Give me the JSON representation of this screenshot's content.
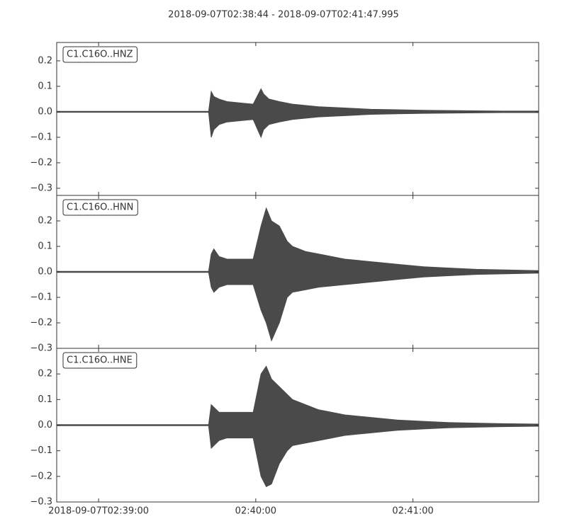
{
  "chart_data": [
    {
      "type": "area",
      "title": "2018-09-07T02:38:44  -  2018-09-07T02:41:47.995",
      "label": "C1.C16O..HNZ",
      "xlim": [
        0,
        183.995
      ],
      "ylim": [
        -0.328,
        0.272
      ],
      "yticks": [
        {
          "value": -0.3,
          "label": "−0.3"
        },
        {
          "value": -0.2,
          "label": "−0.2"
        },
        {
          "value": -0.1,
          "label": "−0.1"
        },
        {
          "value": 0,
          "label": "0.0"
        },
        0.1,
        0.2
      ],
      "x": [
        0,
        58,
        59,
        60,
        62,
        65,
        70,
        75,
        78,
        79,
        81,
        85,
        90,
        100,
        110,
        120,
        130,
        140,
        150,
        160,
        170,
        184
      ],
      "series": [
        {
          "color": "#4a4a4a",
          "values": [
            0.002,
            0.002,
            0.08,
            0.06,
            0.05,
            0.04,
            0.035,
            0.03,
            0.09,
            0.07,
            0.05,
            0.04,
            0.03,
            0.02,
            0.015,
            0.01,
            0.008,
            0.006,
            0.005,
            0.004,
            0.003,
            0.003
          ]
        },
        {
          "color": "#4a4a4a",
          "values": [
            -0.002,
            -0.002,
            -0.1,
            -0.07,
            -0.05,
            -0.04,
            -0.035,
            -0.03,
            -0.1,
            -0.07,
            -0.05,
            -0.04,
            -0.03,
            -0.02,
            -0.015,
            -0.01,
            -0.008,
            -0.006,
            -0.005,
            -0.004,
            -0.003,
            -0.003
          ]
        }
      ]
    },
    {
      "type": "area",
      "label": "C1.C16O..HNN",
      "xlim": [
        0,
        183.995
      ],
      "ylim": [
        -0.3,
        0.3
      ],
      "yticks": [
        {
          "value": -0.3,
          "label": "−0.3"
        },
        {
          "value": -0.2,
          "label": "−0.2"
        },
        {
          "value": -0.1,
          "label": "−0.1"
        },
        {
          "value": 0,
          "label": "0.0"
        },
        0.1,
        0.2
      ],
      "x": [
        0,
        58,
        59,
        60,
        62,
        65,
        70,
        75,
        78,
        80,
        82,
        85,
        88,
        90,
        95,
        100,
        110,
        120,
        130,
        140,
        150,
        160,
        170,
        184
      ],
      "series": [
        {
          "color": "#4a4a4a",
          "values": [
            0.002,
            0.002,
            0.07,
            0.09,
            0.06,
            0.05,
            0.05,
            0.05,
            0.18,
            0.25,
            0.2,
            0.18,
            0.12,
            0.1,
            0.08,
            0.07,
            0.05,
            0.04,
            0.03,
            0.02,
            0.015,
            0.01,
            0.008,
            0.005
          ]
        },
        {
          "color": "#4a4a4a",
          "values": [
            -0.002,
            -0.002,
            -0.06,
            -0.08,
            -0.06,
            -0.05,
            -0.05,
            -0.05,
            -0.15,
            -0.2,
            -0.27,
            -0.2,
            -0.1,
            -0.08,
            -0.07,
            -0.06,
            -0.05,
            -0.04,
            -0.03,
            -0.02,
            -0.015,
            -0.01,
            -0.008,
            -0.005
          ]
        }
      ]
    },
    {
      "type": "area",
      "label": "C1.C16O..HNE",
      "xlim": [
        0,
        183.995
      ],
      "ylim": [
        -0.3,
        0.3
      ],
      "yticks": [
        {
          "value": -0.3,
          "label": "−0.3"
        },
        {
          "value": -0.2,
          "label": "−0.2"
        },
        {
          "value": -0.1,
          "label": "−0.1"
        },
        {
          "value": 0,
          "label": "0.0"
        },
        0.1,
        0.2
      ],
      "xticks": [
        {
          "value": 16,
          "label": "2018-09-07T02:39:00"
        },
        {
          "value": 76,
          "label": "02:40:00"
        },
        {
          "value": 136,
          "label": "02:41:00"
        }
      ],
      "x": [
        0,
        58,
        59,
        60,
        62,
        65,
        70,
        75,
        78,
        80,
        82,
        85,
        88,
        90,
        95,
        100,
        110,
        120,
        130,
        140,
        150,
        160,
        170,
        184
      ],
      "series": [
        {
          "color": "#4a4a4a",
          "values": [
            0.002,
            0.002,
            0.08,
            0.07,
            0.05,
            0.05,
            0.05,
            0.05,
            0.2,
            0.23,
            0.18,
            0.15,
            0.12,
            0.1,
            0.08,
            0.06,
            0.04,
            0.03,
            0.02,
            0.015,
            0.01,
            0.008,
            0.006,
            0.004
          ]
        },
        {
          "color": "#4a4a4a",
          "values": [
            -0.002,
            -0.002,
            -0.09,
            -0.08,
            -0.06,
            -0.05,
            -0.05,
            -0.05,
            -0.2,
            -0.24,
            -0.23,
            -0.15,
            -0.1,
            -0.08,
            -0.07,
            -0.06,
            -0.04,
            -0.03,
            -0.02,
            -0.015,
            -0.01,
            -0.008,
            -0.006,
            -0.004
          ]
        }
      ]
    }
  ]
}
